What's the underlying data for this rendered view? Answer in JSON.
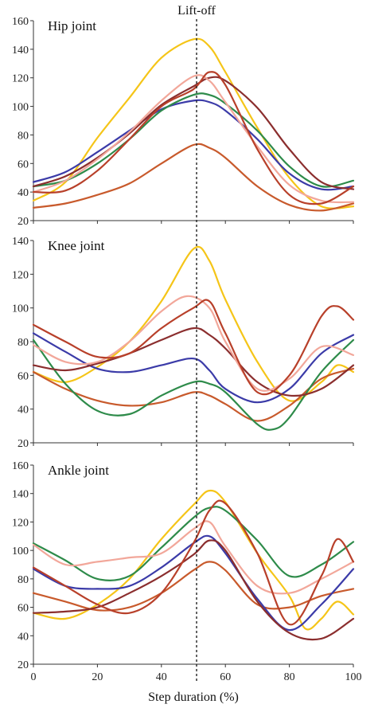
{
  "figure": {
    "annotation": "Lift-off",
    "xlabel": "Step duration (%)",
    "liftoff_x": 51
  },
  "chart_data": [
    {
      "type": "line",
      "title": "Hip joint",
      "xlim": [
        0,
        100
      ],
      "ylim": [
        20,
        160
      ],
      "xticks": [
        0,
        20,
        40,
        60,
        80,
        100
      ],
      "yticks": [
        20,
        40,
        60,
        80,
        100,
        120,
        140,
        160
      ],
      "series": [
        {
          "color": "#f5c518",
          "points": [
            [
              0,
              34
            ],
            [
              10,
              47
            ],
            [
              20,
              78
            ],
            [
              30,
              106
            ],
            [
              40,
              134
            ],
            [
              50,
              147
            ],
            [
              55,
              142
            ],
            [
              60,
              124
            ],
            [
              70,
              85
            ],
            [
              80,
              50
            ],
            [
              90,
              30
            ],
            [
              100,
              30
            ]
          ]
        },
        {
          "color": "#c85a2c",
          "points": [
            [
              0,
              29
            ],
            [
              10,
              32
            ],
            [
              20,
              38
            ],
            [
              30,
              46
            ],
            [
              40,
              60
            ],
            [
              50,
              73
            ],
            [
              55,
              71
            ],
            [
              60,
              64
            ],
            [
              70,
              44
            ],
            [
              80,
              31
            ],
            [
              90,
              27
            ],
            [
              100,
              32
            ]
          ]
        },
        {
          "color": "#3b3ba8",
          "points": [
            [
              0,
              47
            ],
            [
              10,
              54
            ],
            [
              20,
              68
            ],
            [
              30,
              83
            ],
            [
              40,
              98
            ],
            [
              50,
              104
            ],
            [
              55,
              103
            ],
            [
              60,
              97
            ],
            [
              70,
              77
            ],
            [
              80,
              53
            ],
            [
              90,
              42
            ],
            [
              100,
              44
            ]
          ]
        },
        {
          "color": "#2e8b4a",
          "points": [
            [
              0,
              44
            ],
            [
              10,
              48
            ],
            [
              20,
              60
            ],
            [
              30,
              77
            ],
            [
              40,
              97
            ],
            [
              50,
              108
            ],
            [
              55,
              108
            ],
            [
              60,
              102
            ],
            [
              70,
              83
            ],
            [
              80,
              58
            ],
            [
              90,
              44
            ],
            [
              100,
              48
            ]
          ]
        },
        {
          "color": "#8b2e2e",
          "points": [
            [
              0,
              44
            ],
            [
              10,
              51
            ],
            [
              20,
              64
            ],
            [
              30,
              81
            ],
            [
              40,
              101
            ],
            [
              50,
              114
            ],
            [
              55,
              120
            ],
            [
              60,
              118
            ],
            [
              70,
              99
            ],
            [
              80,
              70
            ],
            [
              90,
              47
            ],
            [
              100,
              42
            ]
          ]
        },
        {
          "color": "#f2a79a",
          "points": [
            [
              0,
              40
            ],
            [
              10,
              48
            ],
            [
              20,
              63
            ],
            [
              30,
              82
            ],
            [
              40,
              104
            ],
            [
              50,
              121
            ],
            [
              55,
              118
            ],
            [
              60,
              103
            ],
            [
              70,
              72
            ],
            [
              80,
              45
            ],
            [
              90,
              34
            ],
            [
              100,
              33
            ]
          ]
        },
        {
          "color": "#b8402a",
          "points": [
            [
              0,
              40
            ],
            [
              10,
              41
            ],
            [
              20,
              55
            ],
            [
              30,
              77
            ],
            [
              40,
              100
            ],
            [
              50,
              112
            ],
            [
              55,
              124
            ],
            [
              60,
              115
            ],
            [
              70,
              70
            ],
            [
              80,
              38
            ],
            [
              90,
              32
            ],
            [
              100,
              44
            ]
          ]
        }
      ]
    },
    {
      "type": "line",
      "title": "Knee joint",
      "xlim": [
        0,
        100
      ],
      "ylim": [
        20,
        140
      ],
      "xticks": [
        0,
        20,
        40,
        60,
        80,
        100
      ],
      "yticks": [
        20,
        40,
        60,
        80,
        100,
        120,
        140
      ],
      "series": [
        {
          "color": "#f5c518",
          "points": [
            [
              0,
              62
            ],
            [
              10,
              56
            ],
            [
              20,
              65
            ],
            [
              30,
              80
            ],
            [
              40,
              104
            ],
            [
              50,
              135
            ],
            [
              55,
              128
            ],
            [
              60,
              105
            ],
            [
              70,
              68
            ],
            [
              80,
              45
            ],
            [
              90,
              56
            ],
            [
              95,
              66
            ],
            [
              100,
              62
            ]
          ]
        },
        {
          "color": "#c85a2c",
          "points": [
            [
              0,
              62
            ],
            [
              10,
              52
            ],
            [
              20,
              45
            ],
            [
              30,
              42
            ],
            [
              40,
              44
            ],
            [
              50,
              50
            ],
            [
              55,
              48
            ],
            [
              60,
              43
            ],
            [
              70,
              33
            ],
            [
              80,
              42
            ],
            [
              90,
              58
            ],
            [
              100,
              64
            ]
          ]
        },
        {
          "color": "#3b3ba8",
          "points": [
            [
              0,
              85
            ],
            [
              10,
              74
            ],
            [
              20,
              64
            ],
            [
              30,
              62
            ],
            [
              40,
              66
            ],
            [
              50,
              70
            ],
            [
              55,
              63
            ],
            [
              60,
              52
            ],
            [
              70,
              44
            ],
            [
              80,
              52
            ],
            [
              90,
              73
            ],
            [
              100,
              84
            ]
          ]
        },
        {
          "color": "#2e8b4a",
          "points": [
            [
              0,
              81
            ],
            [
              10,
              55
            ],
            [
              20,
              39
            ],
            [
              30,
              37
            ],
            [
              40,
              48
            ],
            [
              50,
              56
            ],
            [
              55,
              55
            ],
            [
              60,
              50
            ],
            [
              70,
              31
            ],
            [
              75,
              28
            ],
            [
              80,
              35
            ],
            [
              90,
              62
            ],
            [
              100,
              81
            ]
          ]
        },
        {
          "color": "#8b2e2e",
          "points": [
            [
              0,
              66
            ],
            [
              10,
              63
            ],
            [
              20,
              67
            ],
            [
              30,
              73
            ],
            [
              40,
              81
            ],
            [
              50,
              88
            ],
            [
              55,
              84
            ],
            [
              60,
              76
            ],
            [
              70,
              56
            ],
            [
              80,
              48
            ],
            [
              90,
              52
            ],
            [
              100,
              66
            ]
          ]
        },
        {
          "color": "#f2a79a",
          "points": [
            [
              0,
              78
            ],
            [
              10,
              68
            ],
            [
              20,
              68
            ],
            [
              30,
              80
            ],
            [
              40,
              98
            ],
            [
              48,
              107
            ],
            [
              55,
              100
            ],
            [
              60,
              80
            ],
            [
              70,
              52
            ],
            [
              80,
              58
            ],
            [
              90,
              77
            ],
            [
              100,
              72
            ]
          ]
        },
        {
          "color": "#b8402a",
          "points": [
            [
              0,
              90
            ],
            [
              10,
              80
            ],
            [
              20,
              71
            ],
            [
              30,
              73
            ],
            [
              40,
              88
            ],
            [
              50,
              100
            ],
            [
              55,
              104
            ],
            [
              60,
              85
            ],
            [
              70,
              50
            ],
            [
              80,
              60
            ],
            [
              90,
              95
            ],
            [
              95,
              101
            ],
            [
              100,
              93
            ]
          ]
        }
      ]
    },
    {
      "type": "line",
      "title": "Ankle joint",
      "xlim": [
        0,
        100
      ],
      "ylim": [
        20,
        160
      ],
      "xticks": [
        0,
        20,
        40,
        60,
        80,
        100
      ],
      "yticks": [
        20,
        40,
        60,
        80,
        100,
        120,
        140,
        160
      ],
      "series": [
        {
          "color": "#f5c518",
          "points": [
            [
              0,
              56
            ],
            [
              10,
              52
            ],
            [
              20,
              62
            ],
            [
              30,
              80
            ],
            [
              40,
              108
            ],
            [
              50,
              132
            ],
            [
              55,
              142
            ],
            [
              60,
              134
            ],
            [
              70,
              98
            ],
            [
              80,
              68
            ],
            [
              85,
              45
            ],
            [
              90,
              52
            ],
            [
              95,
              64
            ],
            [
              100,
              55
            ]
          ]
        },
        {
          "color": "#c85a2c",
          "points": [
            [
              0,
              70
            ],
            [
              10,
              64
            ],
            [
              20,
              58
            ],
            [
              30,
              60
            ],
            [
              40,
              70
            ],
            [
              50,
              86
            ],
            [
              55,
              92
            ],
            [
              60,
              86
            ],
            [
              70,
              62
            ],
            [
              80,
              60
            ],
            [
              90,
              68
            ],
            [
              100,
              73
            ]
          ]
        },
        {
          "color": "#3b3ba8",
          "points": [
            [
              0,
              87
            ],
            [
              10,
              75
            ],
            [
              20,
              73
            ],
            [
              30,
              75
            ],
            [
              40,
              88
            ],
            [
              50,
              105
            ],
            [
              55,
              110
            ],
            [
              60,
              98
            ],
            [
              70,
              66
            ],
            [
              80,
              44
            ],
            [
              90,
              62
            ],
            [
              100,
              87
            ]
          ]
        },
        {
          "color": "#2e8b4a",
          "points": [
            [
              0,
              105
            ],
            [
              10,
              93
            ],
            [
              20,
              80
            ],
            [
              30,
              82
            ],
            [
              40,
              102
            ],
            [
              50,
              123
            ],
            [
              55,
              130
            ],
            [
              60,
              128
            ],
            [
              70,
              107
            ],
            [
              80,
              82
            ],
            [
              90,
              90
            ],
            [
              100,
              106
            ]
          ]
        },
        {
          "color": "#8b2e2e",
          "points": [
            [
              0,
              56
            ],
            [
              10,
              57
            ],
            [
              20,
              60
            ],
            [
              30,
              70
            ],
            [
              40,
              82
            ],
            [
              50,
              97
            ],
            [
              55,
              107
            ],
            [
              60,
              100
            ],
            [
              70,
              64
            ],
            [
              80,
              42
            ],
            [
              90,
              38
            ],
            [
              100,
              52
            ]
          ]
        },
        {
          "color": "#f2a79a",
          "points": [
            [
              0,
              104
            ],
            [
              10,
              90
            ],
            [
              20,
              92
            ],
            [
              30,
              95
            ],
            [
              40,
              98
            ],
            [
              50,
              115
            ],
            [
              55,
              120
            ],
            [
              60,
              103
            ],
            [
              70,
              75
            ],
            [
              80,
              70
            ],
            [
              90,
              80
            ],
            [
              100,
              92
            ]
          ]
        },
        {
          "color": "#b8402a",
          "points": [
            [
              0,
              88
            ],
            [
              10,
              75
            ],
            [
              20,
              62
            ],
            [
              30,
              56
            ],
            [
              40,
              70
            ],
            [
              50,
              105
            ],
            [
              55,
              128
            ],
            [
              60,
              133
            ],
            [
              70,
              98
            ],
            [
              80,
              48
            ],
            [
              90,
              82
            ],
            [
              95,
              108
            ],
            [
              100,
              92
            ]
          ]
        }
      ]
    }
  ]
}
